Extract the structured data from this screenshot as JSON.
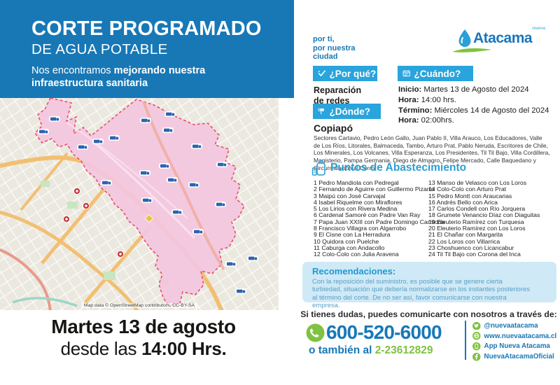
{
  "header": {
    "title": "CORTE PROGRAMADO",
    "subtitle": "DE AGUA POTABLE",
    "tagline_regular": "Nos encontramos ",
    "tagline_bold": "mejorando nuestra infraestructura sanitaria"
  },
  "brand": {
    "slogan_line1": "por ti,",
    "slogan_line2": "por nuestra",
    "slogan_line3": "ciudad",
    "logo_name": "Atacama",
    "logo_super": "nueva"
  },
  "why": {
    "badge": "¿Por qué?",
    "line1": "Reparación",
    "line2": "de redes"
  },
  "when": {
    "badge": "¿Cuándo?",
    "lines": [
      {
        "label": "Inicio:",
        "value": " Martes 13 de Agosto del 2024"
      },
      {
        "label": "Hora:",
        "value": " 14:00 hrs."
      },
      {
        "label": "Término:",
        "value": " Miércoles 14 de Agosto del 2024"
      },
      {
        "label": "Hora:",
        "value": " 02:00hrs."
      }
    ]
  },
  "where": {
    "badge": "¿Dónde?",
    "city": "Copiapó",
    "sectors": "Sectores Cartavio, Pedro León Gallo, Juan Pablo II, Villa Arauco, Los Educadores, Valle de Los Ríos, Litorales, Balmaceda, Tambo, Arturo Prat, Pablo Neruda, Escritores de Chile, Los Minerales, Los Volcanes, Villa Esperanza, Los Presidentes, Til Til Bajo, Villa Cordillera, Magisterio, Pampa Germania, Diego de Almagro, Felipe Mercado, Calle Baquedano y Circunvalación al Cerro."
  },
  "supply_points": {
    "title": "Puntos de Abastecimiento",
    "items_left": [
      "1 Pedro Mandiola con Pedregal",
      "2 Fernando de Aguirre con Guillermo Pizarro",
      "3 Maipú con José Carvajal",
      "4 Isabel Riquelme con Miraflores",
      "5 Los Lirios con Rivera Medina",
      "6 Cardenal Samoré con Padre Van Ray",
      "7 Papa Juan XXIII con Padre Domingo Carmona",
      "8 Francisco Villagra con Algarrobo",
      "9 El Cisne con La Herradura",
      "10 Quidora con Puelche",
      "11 Caburga con Andacollo",
      "12 Colo-Colo con Julia Aravena"
    ],
    "items_right": [
      "13 Manso de Velasco con Los Loros",
      "14 Colo-Colo con Arturo Prat",
      "15 Pedro Montt con Araucarias",
      "16 Andrés Bello con Arica",
      "17 Carlos Condell con Río Jorquera",
      "18 Grumete Venancio Díaz con Diaguitas",
      "19 Eleuterio Ramírez con Turquesa",
      "20 Eleuterio Ramírez con Los Loros",
      "21 El Chañar con Margarita",
      "22 Los Loros con Villarrica",
      "23 Choshuenco con Licancabur",
      "24 Til Til Bajo con Corona del Inca"
    ]
  },
  "recommendations": {
    "title": "Recomendaciones:",
    "body": "Con la reposición del suministro, es posible que se genere cierta turbiedad, situación que debería normalizarse en los instantes posteriores al término del corte. De no ser así, favor comunicarse con nuestra empresa."
  },
  "contact": {
    "prompt": "Si tienes dudas, puedes comunicarte con nosotros a través de:",
    "phone_main": "600-520-6000",
    "phone_alt_prefix": "o también al ",
    "phone_alt": "2-23612829",
    "channels": [
      {
        "icon": "twitter-icon",
        "label": "@nuevaatacama"
      },
      {
        "icon": "globe-icon",
        "label": "www.nuevaatacama.cl"
      },
      {
        "icon": "app-icon",
        "label": "App Nueva Atacama"
      },
      {
        "icon": "facebook-icon",
        "label": "NuevaAtacamaOficial"
      }
    ]
  },
  "map": {
    "attribution": "Map data © OpenStreetMap contributors, CC-BY-SA"
  },
  "footer_date": {
    "line1": "Martes 13 de agosto",
    "line2_regular": "desde las ",
    "line2_bold": "14:00 Hrs."
  },
  "colors": {
    "header_blue": "#1878b6",
    "badge_cyan": "#29a4dc",
    "accent_green": "#7fc241",
    "light_blue_panel": "#cfe9f6",
    "affected_zone_pink": "#f3c6de",
    "zone_border": "#e5506e"
  }
}
